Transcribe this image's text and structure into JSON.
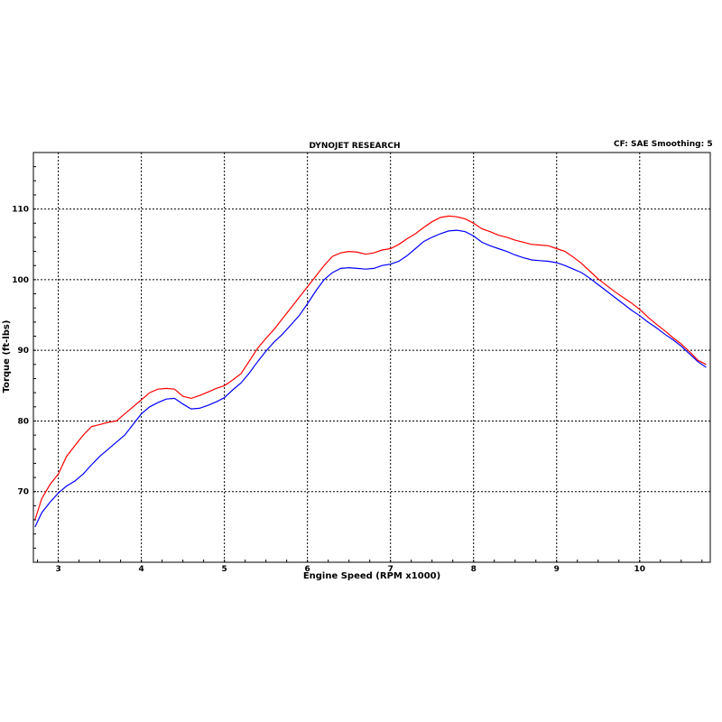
{
  "header": {
    "title": "DYNOJET RESEARCH",
    "info": "CF: SAE  Smoothing: 5"
  },
  "chart_data": {
    "type": "line",
    "title": "DYNOJET RESEARCH",
    "xlabel": "Engine Speed (RPM x1000)",
    "ylabel": "Torque (ft-lbs)",
    "xlim": [
      2.7,
      10.85
    ],
    "ylim": [
      60,
      118
    ],
    "grid": true,
    "x_ticks": [
      3,
      4,
      5,
      6,
      7,
      8,
      9,
      10
    ],
    "y_ticks": [
      70,
      80,
      90,
      100,
      110
    ],
    "series": [
      {
        "color": "#ff0000",
        "points": [
          [
            2.72,
            66
          ],
          [
            2.8,
            69
          ],
          [
            2.9,
            71
          ],
          [
            3.0,
            72.5
          ],
          [
            3.1,
            75
          ],
          [
            3.2,
            76.5
          ],
          [
            3.3,
            78
          ],
          [
            3.4,
            79.2
          ],
          [
            3.5,
            79.5
          ],
          [
            3.6,
            79.8
          ],
          [
            3.7,
            80
          ],
          [
            3.8,
            81
          ],
          [
            3.9,
            82
          ],
          [
            4.0,
            83
          ],
          [
            4.1,
            84
          ],
          [
            4.2,
            84.5
          ],
          [
            4.3,
            84.6
          ],
          [
            4.4,
            84.5
          ],
          [
            4.5,
            83.5
          ],
          [
            4.6,
            83.2
          ],
          [
            4.7,
            83.6
          ],
          [
            4.8,
            84.1
          ],
          [
            4.9,
            84.6
          ],
          [
            5.0,
            85
          ],
          [
            5.1,
            85.8
          ],
          [
            5.2,
            86.7
          ],
          [
            5.3,
            88.5
          ],
          [
            5.4,
            90.3
          ],
          [
            5.5,
            91.7
          ],
          [
            5.6,
            93
          ],
          [
            5.7,
            94.5
          ],
          [
            5.8,
            96
          ],
          [
            5.9,
            97.5
          ],
          [
            6.0,
            99
          ],
          [
            6.1,
            100.5
          ],
          [
            6.2,
            102
          ],
          [
            6.3,
            103.3
          ],
          [
            6.4,
            103.8
          ],
          [
            6.5,
            104
          ],
          [
            6.6,
            103.9
          ],
          [
            6.7,
            103.6
          ],
          [
            6.8,
            103.8
          ],
          [
            6.9,
            104.2
          ],
          [
            7.0,
            104.4
          ],
          [
            7.1,
            105
          ],
          [
            7.2,
            105.8
          ],
          [
            7.3,
            106.5
          ],
          [
            7.4,
            107.4
          ],
          [
            7.5,
            108.2
          ],
          [
            7.6,
            108.8
          ],
          [
            7.7,
            109
          ],
          [
            7.8,
            108.9
          ],
          [
            7.9,
            108.6
          ],
          [
            8.0,
            108
          ],
          [
            8.1,
            107.2
          ],
          [
            8.2,
            106.8
          ],
          [
            8.3,
            106.3
          ],
          [
            8.4,
            106
          ],
          [
            8.5,
            105.6
          ],
          [
            8.6,
            105.3
          ],
          [
            8.7,
            105
          ],
          [
            8.8,
            104.9
          ],
          [
            8.9,
            104.8
          ],
          [
            9.0,
            104.4
          ],
          [
            9.1,
            104
          ],
          [
            9.2,
            103.2
          ],
          [
            9.3,
            102.3
          ],
          [
            9.4,
            101.2
          ],
          [
            9.5,
            100.1
          ],
          [
            9.6,
            99.2
          ],
          [
            9.7,
            98.3
          ],
          [
            9.8,
            97.5
          ],
          [
            9.9,
            96.7
          ],
          [
            10.0,
            95.8
          ],
          [
            10.1,
            94.7
          ],
          [
            10.2,
            93.7
          ],
          [
            10.3,
            92.8
          ],
          [
            10.4,
            91.8
          ],
          [
            10.5,
            90.9
          ],
          [
            10.6,
            89.8
          ],
          [
            10.7,
            88.6
          ],
          [
            10.8,
            88
          ]
        ]
      },
      {
        "color": "#0000ff",
        "points": [
          [
            2.72,
            65
          ],
          [
            2.8,
            67
          ],
          [
            2.9,
            68.5
          ],
          [
            3.0,
            69.8
          ],
          [
            3.1,
            70.8
          ],
          [
            3.2,
            71.5
          ],
          [
            3.3,
            72.5
          ],
          [
            3.4,
            73.8
          ],
          [
            3.5,
            75
          ],
          [
            3.6,
            76
          ],
          [
            3.7,
            77
          ],
          [
            3.8,
            78
          ],
          [
            3.9,
            79.5
          ],
          [
            4.0,
            81
          ],
          [
            4.1,
            82
          ],
          [
            4.2,
            82.6
          ],
          [
            4.3,
            83.1
          ],
          [
            4.4,
            83.2
          ],
          [
            4.5,
            82.4
          ],
          [
            4.6,
            81.7
          ],
          [
            4.7,
            81.8
          ],
          [
            4.8,
            82.2
          ],
          [
            4.9,
            82.7
          ],
          [
            5.0,
            83.3
          ],
          [
            5.1,
            84.4
          ],
          [
            5.2,
            85.4
          ],
          [
            5.3,
            86.8
          ],
          [
            5.4,
            88.4
          ],
          [
            5.5,
            89.9
          ],
          [
            5.6,
            91.2
          ],
          [
            5.7,
            92.3
          ],
          [
            5.8,
            93.6
          ],
          [
            5.9,
            94.9
          ],
          [
            6.0,
            96.6
          ],
          [
            6.1,
            98.4
          ],
          [
            6.2,
            100
          ],
          [
            6.3,
            101
          ],
          [
            6.4,
            101.6
          ],
          [
            6.5,
            101.7
          ],
          [
            6.6,
            101.6
          ],
          [
            6.7,
            101.5
          ],
          [
            6.8,
            101.6
          ],
          [
            6.9,
            102
          ],
          [
            7.0,
            102.2
          ],
          [
            7.1,
            102.6
          ],
          [
            7.2,
            103.4
          ],
          [
            7.3,
            104.4
          ],
          [
            7.4,
            105.4
          ],
          [
            7.5,
            106
          ],
          [
            7.6,
            106.5
          ],
          [
            7.7,
            106.9
          ],
          [
            7.8,
            107
          ],
          [
            7.9,
            106.8
          ],
          [
            8.0,
            106.2
          ],
          [
            8.1,
            105.3
          ],
          [
            8.2,
            104.8
          ],
          [
            8.3,
            104.4
          ],
          [
            8.4,
            104
          ],
          [
            8.5,
            103.5
          ],
          [
            8.6,
            103.1
          ],
          [
            8.7,
            102.8
          ],
          [
            8.8,
            102.7
          ],
          [
            8.9,
            102.6
          ],
          [
            9.0,
            102.4
          ],
          [
            9.1,
            102
          ],
          [
            9.2,
            101.5
          ],
          [
            9.3,
            101
          ],
          [
            9.4,
            100.2
          ],
          [
            9.5,
            99.3
          ],
          [
            9.6,
            98.4
          ],
          [
            9.7,
            97.5
          ],
          [
            9.8,
            96.6
          ],
          [
            9.9,
            95.7
          ],
          [
            10.0,
            94.9
          ],
          [
            10.1,
            94
          ],
          [
            10.2,
            93.2
          ],
          [
            10.3,
            92.3
          ],
          [
            10.4,
            91.5
          ],
          [
            10.5,
            90.6
          ],
          [
            10.6,
            89.5
          ],
          [
            10.7,
            88.4
          ],
          [
            10.8,
            87.6
          ]
        ]
      }
    ]
  }
}
